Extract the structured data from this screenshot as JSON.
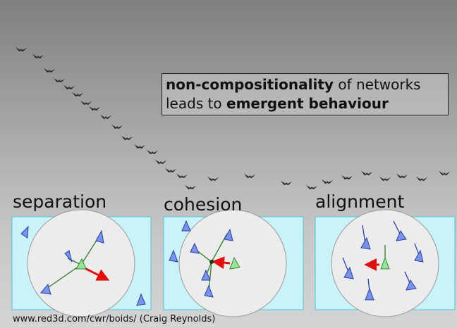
{
  "headline": {
    "line1": {
      "bold": "non-compositionality",
      "rest": " of networks"
    },
    "line2": {
      "lead": "leads to ",
      "bold": "emergent behaviour"
    }
  },
  "panels": [
    {
      "label": "separation"
    },
    {
      "label": "cohesion"
    },
    {
      "label": "alignment"
    }
  ],
  "credit": "www.red3d.com/cwr/boids/ (Craig Reynolds)"
}
